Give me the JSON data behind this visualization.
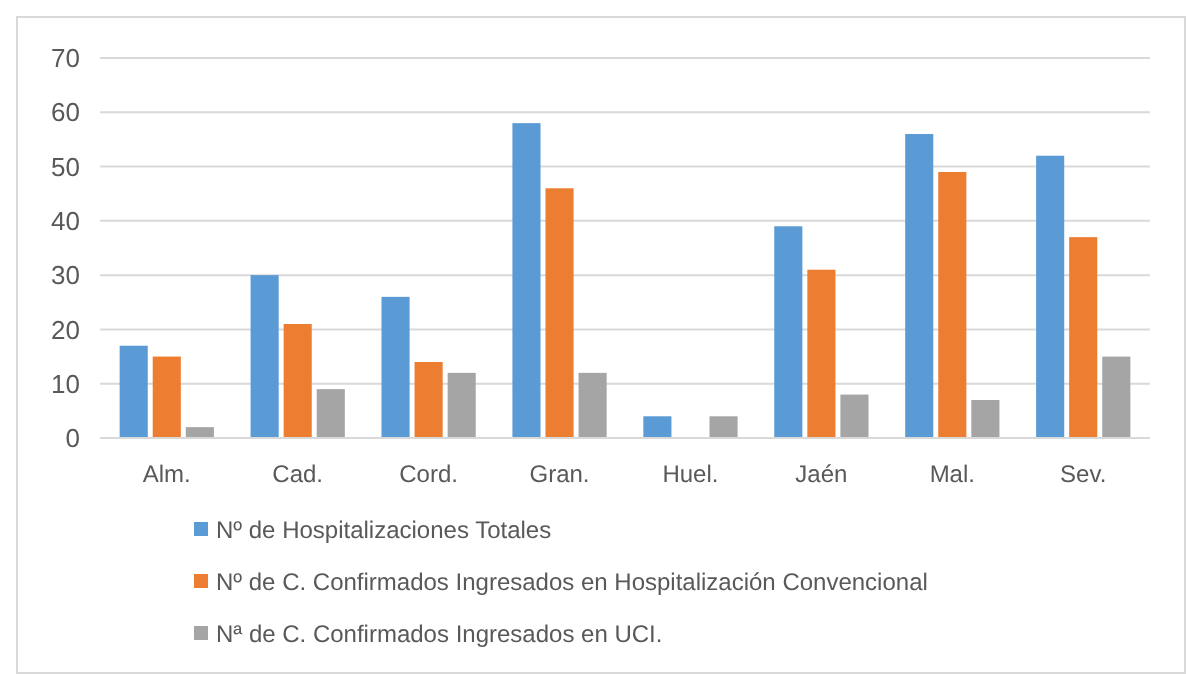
{
  "chart_data": {
    "type": "bar",
    "categories": [
      "Alm.",
      "Cad.",
      "Cord.",
      "Gran.",
      "Huel.",
      "Jaén",
      "Mal.",
      "Sev."
    ],
    "series": [
      {
        "name": "Nº de Hospitalizaciones Totales",
        "color": "#5b9bd5",
        "values": [
          17,
          30,
          26,
          58,
          4,
          39,
          56,
          52
        ]
      },
      {
        "name": "Nº de C. Confirmados Ingresados en Hospitalización Convencional",
        "color": "#ed7d31",
        "values": [
          15,
          21,
          14,
          46,
          0,
          31,
          49,
          37
        ]
      },
      {
        "name": "Nª de C. Confirmados Ingresados en UCI.",
        "color": "#a5a5a5",
        "values": [
          2,
          9,
          12,
          12,
          4,
          8,
          7,
          15
        ]
      }
    ],
    "ylim": [
      0,
      70
    ],
    "yticks": [
      0,
      10,
      20,
      30,
      40,
      50,
      60,
      70
    ],
    "grid": "y",
    "legend": "bottom"
  }
}
